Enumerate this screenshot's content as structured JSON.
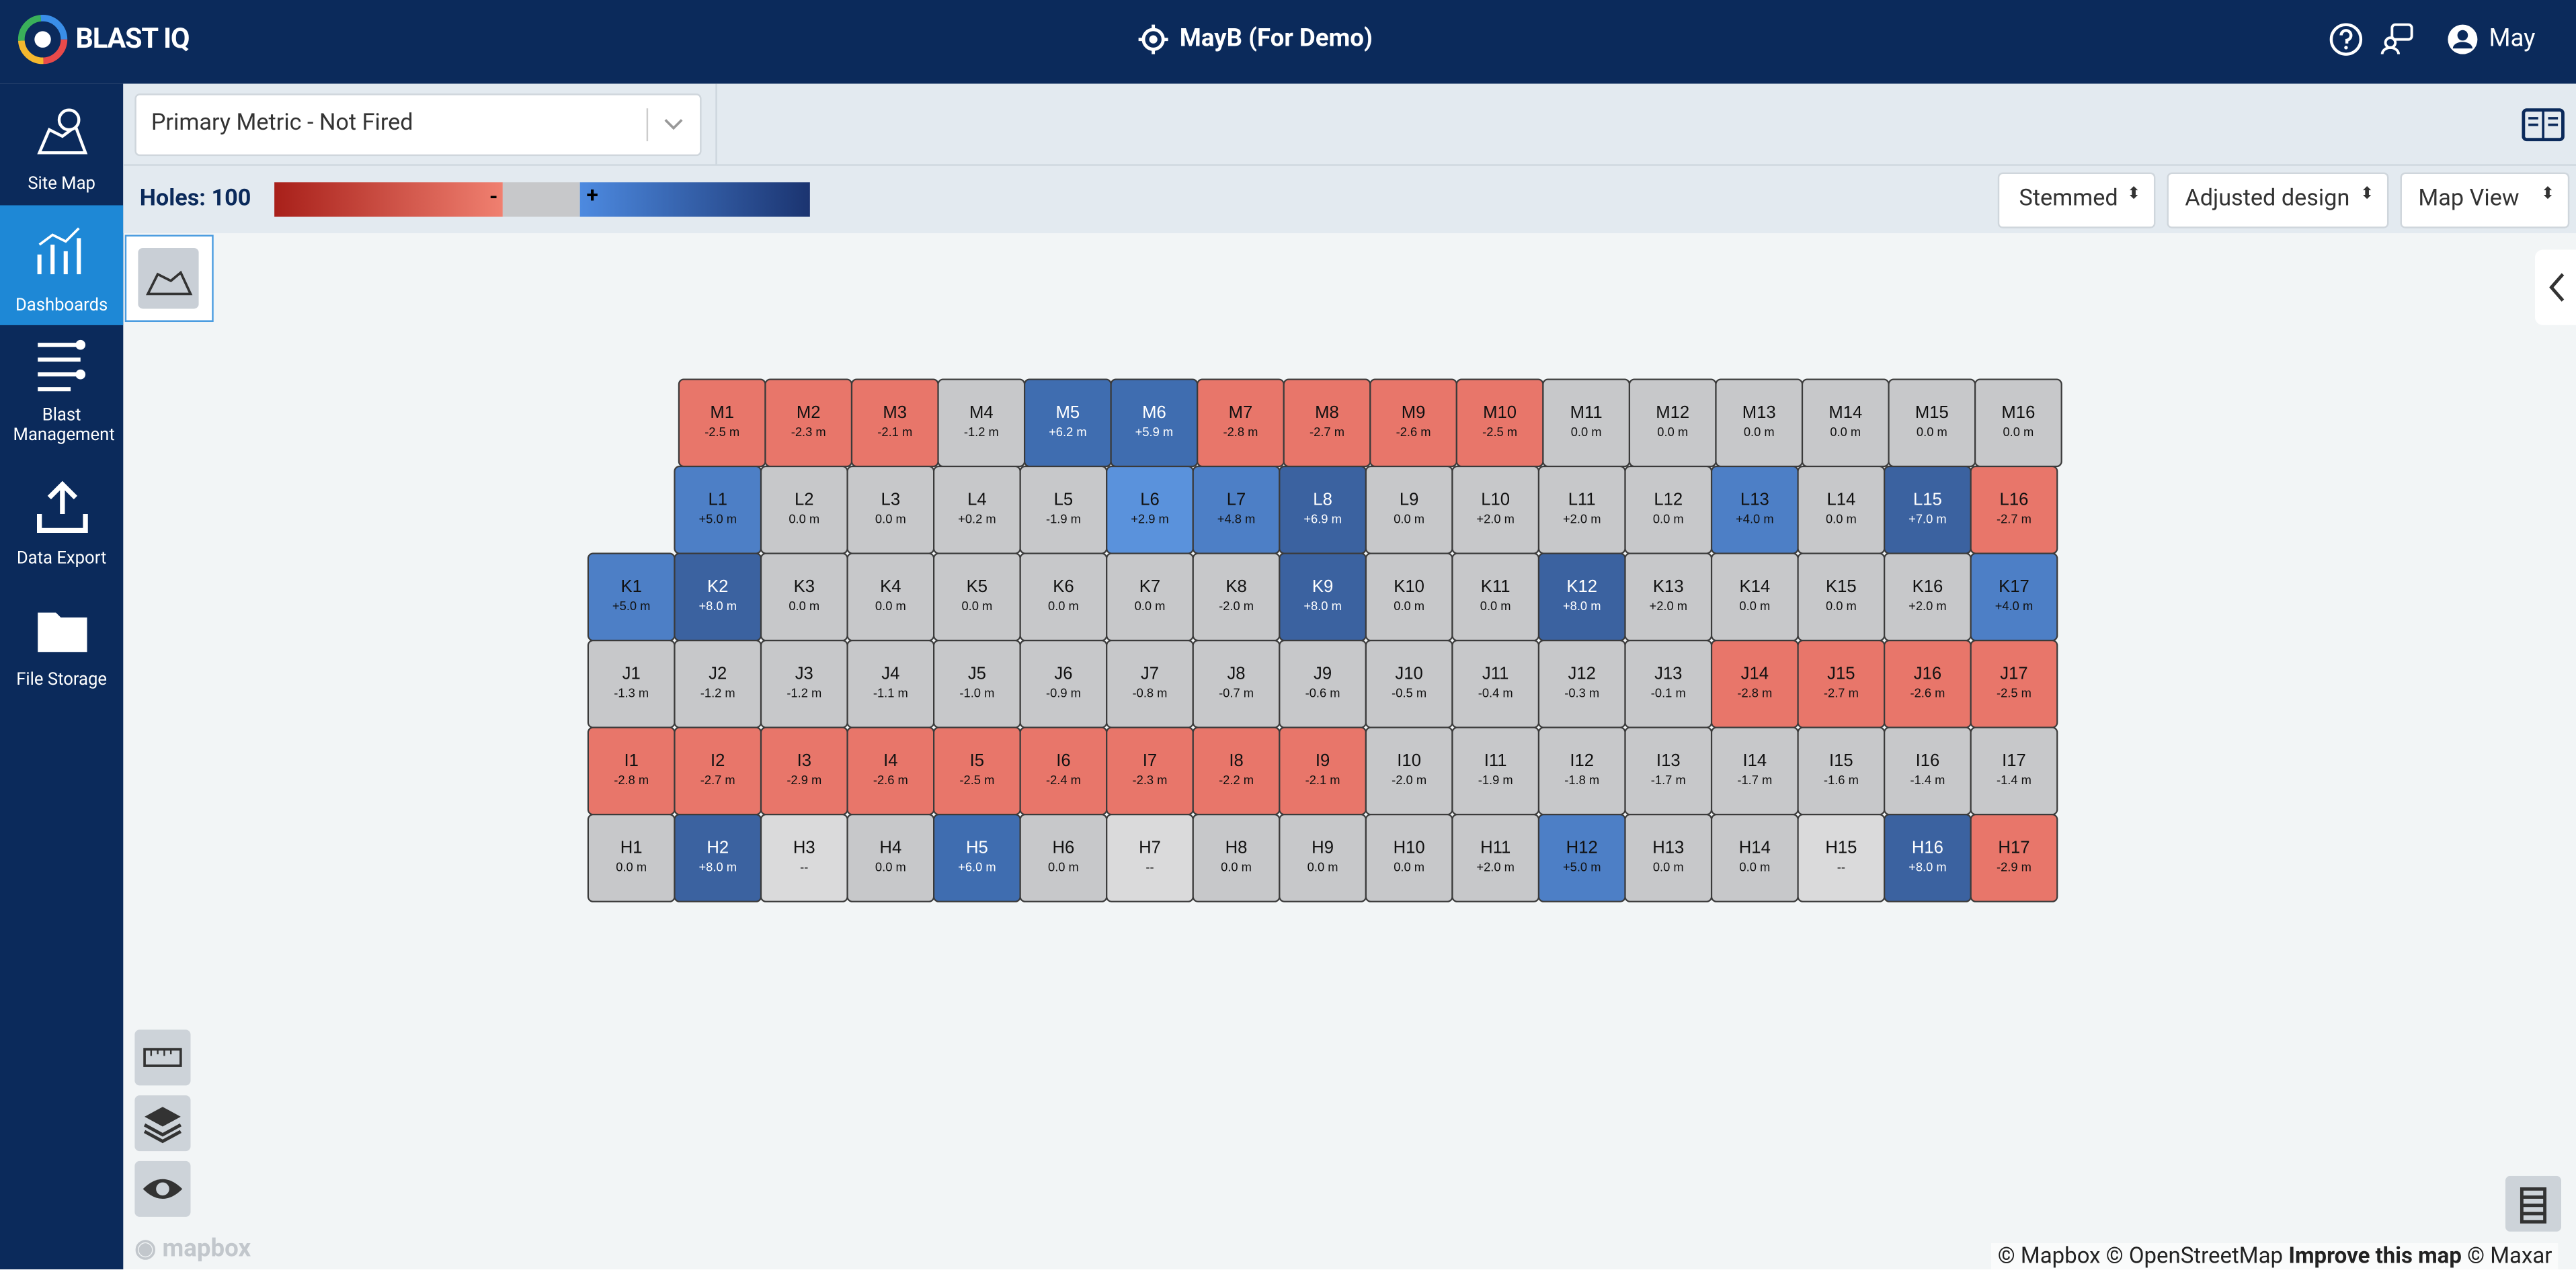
{
  "header": {
    "logo": "BLAST IQ",
    "site": "MayB (For Demo)",
    "user": "May"
  },
  "sidebar": [
    "Site Map",
    "Dashboards",
    "Blast Management",
    "Data Export",
    "File Storage"
  ],
  "toolbar": {
    "metric": "Primary Metric - Not Fired",
    "holes": "Holes: 100",
    "legend_minus": "-",
    "legend_plus": "+",
    "dropdowns": [
      "Stemmed",
      "Adjusted design",
      "Map View"
    ]
  },
  "map": {
    "rows": [
      {
        "cells": [
          {
            "label": "M1",
            "value": "-2.5 m",
            "color": "#e8766a"
          },
          {
            "label": "M2",
            "value": "-2.3 m",
            "color": "#e8766a"
          },
          {
            "label": "M3",
            "value": "-2.1 m",
            "color": "#e8766a"
          },
          {
            "label": "M4",
            "value": "-1.2 m",
            "color": "#c7c8ca"
          },
          {
            "label": "M5",
            "value": "+6.2 m",
            "color": "#3f6db0"
          },
          {
            "label": "M6",
            "value": "+5.9 m",
            "color": "#3f6db0"
          },
          {
            "label": "M7",
            "value": "-2.8 m",
            "color": "#e8766a"
          },
          {
            "label": "M8",
            "value": "-2.7 m",
            "color": "#e8766a"
          },
          {
            "label": "M9",
            "value": "-2.6 m",
            "color": "#e8766a"
          },
          {
            "label": "M10",
            "value": "-2.5 m",
            "color": "#e8766a"
          },
          {
            "label": "M11",
            "value": "0.0 m",
            "color": "#c7c8ca"
          },
          {
            "label": "M12",
            "value": "0.0 m",
            "color": "#c7c8ca"
          },
          {
            "label": "M13",
            "value": "0.0 m",
            "color": "#c7c8ca"
          },
          {
            "label": "M14",
            "value": "0.0 m",
            "color": "#c7c8ca"
          },
          {
            "label": "M15",
            "value": "0.0 m",
            "color": "#c7c8ca"
          },
          {
            "label": "M16",
            "value": "0.0 m",
            "color": "#c7c8ca"
          }
        ]
      },
      {
        "cells": [
          {
            "label": "L1",
            "value": "+5.0 m",
            "color": "#4d7fc6"
          },
          {
            "label": "L2",
            "value": "0.0 m",
            "color": "#c7c8ca"
          },
          {
            "label": "L3",
            "value": "0.0 m",
            "color": "#c7c8ca"
          },
          {
            "label": "L4",
            "value": "+0.2 m",
            "color": "#c7c8ca"
          },
          {
            "label": "L5",
            "value": "-1.9 m",
            "color": "#c7c8ca"
          },
          {
            "label": "L6",
            "value": "+2.9 m",
            "color": "#5a92dc"
          },
          {
            "label": "L7",
            "value": "+4.8 m",
            "color": "#4d7fc6"
          },
          {
            "label": "L8",
            "value": "+6.9 m",
            "color": "#3b62a0"
          },
          {
            "label": "L9",
            "value": "0.0 m",
            "color": "#c7c8ca"
          },
          {
            "label": "L10",
            "value": "+2.0 m",
            "color": "#c7c8ca"
          },
          {
            "label": "L11",
            "value": "+2.0 m",
            "color": "#c7c8ca"
          },
          {
            "label": "L12",
            "value": "0.0 m",
            "color": "#c7c8ca"
          },
          {
            "label": "L13",
            "value": "+4.0 m",
            "color": "#4d7fc6"
          },
          {
            "label": "L14",
            "value": "0.0 m",
            "color": "#c7c8ca"
          },
          {
            "label": "L15",
            "value": "+7.0 m",
            "color": "#3b62a0"
          },
          {
            "label": "L16",
            "value": "-2.7 m",
            "color": "#e8766a"
          }
        ]
      },
      {
        "cells": [
          {
            "label": "K1",
            "value": "+5.0 m",
            "color": "#4d7fc6"
          },
          {
            "label": "K2",
            "value": "+8.0 m",
            "color": "#3b62a0"
          },
          {
            "label": "K3",
            "value": "0.0 m",
            "color": "#c7c8ca"
          },
          {
            "label": "K4",
            "value": "0.0 m",
            "color": "#c7c8ca"
          },
          {
            "label": "K5",
            "value": "0.0 m",
            "color": "#c7c8ca"
          },
          {
            "label": "K6",
            "value": "0.0 m",
            "color": "#c7c8ca"
          },
          {
            "label": "K7",
            "value": "0.0 m",
            "color": "#c7c8ca"
          },
          {
            "label": "K8",
            "value": "-2.0 m",
            "color": "#c7c8ca"
          },
          {
            "label": "K9",
            "value": "+8.0 m",
            "color": "#3b62a0"
          },
          {
            "label": "K10",
            "value": "0.0 m",
            "color": "#c7c8ca"
          },
          {
            "label": "K11",
            "value": "0.0 m",
            "color": "#c7c8ca"
          },
          {
            "label": "K12",
            "value": "+8.0 m",
            "color": "#3b62a0"
          },
          {
            "label": "K13",
            "value": "+2.0 m",
            "color": "#c7c8ca"
          },
          {
            "label": "K14",
            "value": "0.0 m",
            "color": "#c7c8ca"
          },
          {
            "label": "K15",
            "value": "0.0 m",
            "color": "#c7c8ca"
          },
          {
            "label": "K16",
            "value": "+2.0 m",
            "color": "#c7c8ca"
          },
          {
            "label": "K17",
            "value": "+4.0 m",
            "color": "#4d7fc6"
          }
        ]
      },
      {
        "cells": [
          {
            "label": "J1",
            "value": "-1.3 m",
            "color": "#c7c8ca"
          },
          {
            "label": "J2",
            "value": "-1.2 m",
            "color": "#c7c8ca"
          },
          {
            "label": "J3",
            "value": "-1.2 m",
            "color": "#c7c8ca"
          },
          {
            "label": "J4",
            "value": "-1.1 m",
            "color": "#c7c8ca"
          },
          {
            "label": "J5",
            "value": "-1.0 m",
            "color": "#c7c8ca"
          },
          {
            "label": "J6",
            "value": "-0.9 m",
            "color": "#c7c8ca"
          },
          {
            "label": "J7",
            "value": "-0.8 m",
            "color": "#c7c8ca"
          },
          {
            "label": "J8",
            "value": "-0.7 m",
            "color": "#c7c8ca"
          },
          {
            "label": "J9",
            "value": "-0.6 m",
            "color": "#c7c8ca"
          },
          {
            "label": "J10",
            "value": "-0.5 m",
            "color": "#c7c8ca"
          },
          {
            "label": "J11",
            "value": "-0.4 m",
            "color": "#c7c8ca"
          },
          {
            "label": "J12",
            "value": "-0.3 m",
            "color": "#c7c8ca"
          },
          {
            "label": "J13",
            "value": "-0.1 m",
            "color": "#c7c8ca"
          },
          {
            "label": "J14",
            "value": "-2.8 m",
            "color": "#e8766a"
          },
          {
            "label": "J15",
            "value": "-2.7 m",
            "color": "#e8766a"
          },
          {
            "label": "J16",
            "value": "-2.6 m",
            "color": "#e8766a"
          },
          {
            "label": "J17",
            "value": "-2.5 m",
            "color": "#e8766a"
          }
        ]
      },
      {
        "cells": [
          {
            "label": "I1",
            "value": "-2.8 m",
            "color": "#e8766a"
          },
          {
            "label": "I2",
            "value": "-2.7 m",
            "color": "#e8766a"
          },
          {
            "label": "I3",
            "value": "-2.9 m",
            "color": "#e8766a"
          },
          {
            "label": "I4",
            "value": "-2.6 m",
            "color": "#e8766a"
          },
          {
            "label": "I5",
            "value": "-2.5 m",
            "color": "#e8766a"
          },
          {
            "label": "I6",
            "value": "-2.4 m",
            "color": "#e8766a"
          },
          {
            "label": "I7",
            "value": "-2.3 m",
            "color": "#e8766a"
          },
          {
            "label": "I8",
            "value": "-2.2 m",
            "color": "#e8766a"
          },
          {
            "label": "I9",
            "value": "-2.1 m",
            "color": "#e8766a"
          },
          {
            "label": "I10",
            "value": "-2.0 m",
            "color": "#c7c8ca"
          },
          {
            "label": "I11",
            "value": "-1.9 m",
            "color": "#c7c8ca"
          },
          {
            "label": "I12",
            "value": "-1.8 m",
            "color": "#c7c8ca"
          },
          {
            "label": "I13",
            "value": "-1.7 m",
            "color": "#c7c8ca"
          },
          {
            "label": "I14",
            "value": "-1.7 m",
            "color": "#c7c8ca"
          },
          {
            "label": "I15",
            "value": "-1.6 m",
            "color": "#c7c8ca"
          },
          {
            "label": "I16",
            "value": "-1.4 m",
            "color": "#c7c8ca"
          },
          {
            "label": "I17",
            "value": "-1.4 m",
            "color": "#c7c8ca"
          }
        ]
      },
      {
        "cells": [
          {
            "label": "H1",
            "value": "0.0 m",
            "color": "#c7c8ca"
          },
          {
            "label": "H2",
            "value": "+8.0 m",
            "color": "#3b62a0"
          },
          {
            "label": "H3",
            "value": "--",
            "color": "#dadadb"
          },
          {
            "label": "H4",
            "value": "0.0 m",
            "color": "#c7c8ca"
          },
          {
            "label": "H5",
            "value": "+6.0 m",
            "color": "#3f6db0"
          },
          {
            "label": "H6",
            "value": "0.0 m",
            "color": "#c7c8ca"
          },
          {
            "label": "H7",
            "value": "--",
            "color": "#dadadb"
          },
          {
            "label": "H8",
            "value": "0.0 m",
            "color": "#c7c8ca"
          },
          {
            "label": "H9",
            "value": "0.0 m",
            "color": "#c7c8ca"
          },
          {
            "label": "H10",
            "value": "0.0 m",
            "color": "#c7c8ca"
          },
          {
            "label": "H11",
            "value": "+2.0 m",
            "color": "#c7c8ca"
          },
          {
            "label": "H12",
            "value": "+5.0 m",
            "color": "#4d7fc6"
          },
          {
            "label": "H13",
            "value": "0.0 m",
            "color": "#c7c8ca"
          },
          {
            "label": "H14",
            "value": "0.0 m",
            "color": "#c7c8ca"
          },
          {
            "label": "H15",
            "value": "--",
            "color": "#dadadb"
          },
          {
            "label": "H16",
            "value": "+8.0 m",
            "color": "#3b62a0"
          },
          {
            "label": "H17",
            "value": "-2.9 m",
            "color": "#e8766a"
          }
        ]
      }
    ]
  },
  "footer": {
    "logo": "mapbox",
    "attribution": "© Mapbox © OpenStreetMap",
    "improve": "Improve this map",
    "maxar": "© Maxar"
  }
}
